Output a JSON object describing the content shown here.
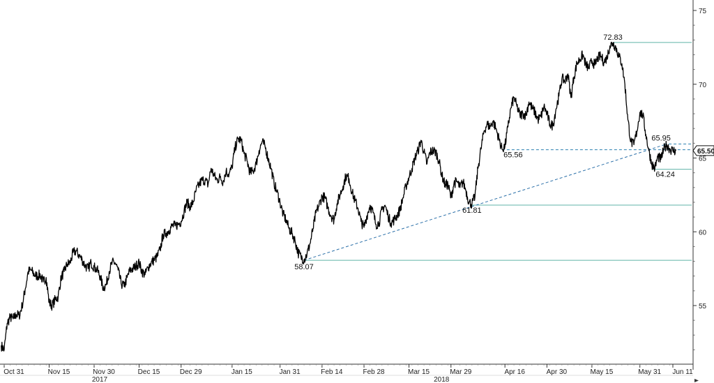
{
  "chart_data": {
    "type": "line",
    "title": "",
    "xlabel": "",
    "ylabel": "",
    "ylim": [
      51.5,
      75.5
    ],
    "y_ticks": [
      55,
      60,
      65,
      70,
      75
    ],
    "y_axis_position": "right",
    "grid": false,
    "legend": "none",
    "x_ticks": [
      {
        "label": "Oct 31",
        "day": 0
      },
      {
        "label": "Nov 15",
        "day": 15
      },
      {
        "label": "Nov 30",
        "day": 30
      },
      {
        "label": "Dec 15",
        "day": 45
      },
      {
        "label": "Dec 29",
        "day": 59
      },
      {
        "label": "Jan 15",
        "day": 76
      },
      {
        "label": "Jan 31",
        "day": 92
      },
      {
        "label": "Feb 14",
        "day": 106
      },
      {
        "label": "Feb 28",
        "day": 120
      },
      {
        "label": "Mar 15",
        "day": 135
      },
      {
        "label": "Mar 29",
        "day": 149
      },
      {
        "label": "Apr 16",
        "day": 167
      },
      {
        "label": "Apr 30",
        "day": 181
      },
      {
        "label": "May 15",
        "day": 196
      },
      {
        "label": "May 31",
        "day": 212
      },
      {
        "label": "Jun 11",
        "day": 223
      }
    ],
    "year_labels": [
      {
        "label": "2017",
        "day": 30
      },
      {
        "label": "2018",
        "day": 144
      }
    ],
    "series": [
      {
        "color": "#000000",
        "points": [
          [
            -1,
            52.3
          ],
          [
            0,
            52.0
          ],
          [
            1,
            53.8
          ],
          [
            2,
            54.2
          ],
          [
            3,
            54.1
          ],
          [
            4,
            54.4
          ],
          [
            5,
            54.3
          ],
          [
            6,
            55.0
          ],
          [
            7,
            56.1
          ],
          [
            8,
            57.3
          ],
          [
            9,
            57.4
          ],
          [
            10,
            57.1
          ],
          [
            11,
            57.0
          ],
          [
            12,
            57.1
          ],
          [
            13,
            56.6
          ],
          [
            14,
            56.9
          ],
          [
            15,
            55.2
          ],
          [
            16,
            55.0
          ],
          [
            17,
            55.4
          ],
          [
            18,
            55.6
          ],
          [
            19,
            56.9
          ],
          [
            20,
            57.3
          ],
          [
            21,
            57.8
          ],
          [
            22,
            57.9
          ],
          [
            23,
            58.6
          ],
          [
            24,
            58.7
          ],
          [
            25,
            58.4
          ],
          [
            26,
            58.1
          ],
          [
            27,
            57.7
          ],
          [
            28,
            57.5
          ],
          [
            29,
            57.9
          ],
          [
            30,
            57.6
          ],
          [
            31,
            57.4
          ],
          [
            32,
            57.0
          ],
          [
            33,
            56.2
          ],
          [
            34,
            56.4
          ],
          [
            35,
            57.3
          ],
          [
            36,
            57.9
          ],
          [
            37,
            57.9
          ],
          [
            38,
            57.4
          ],
          [
            39,
            56.5
          ],
          [
            40,
            56.3
          ],
          [
            41,
            56.9
          ],
          [
            42,
            57.4
          ],
          [
            43,
            57.5
          ],
          [
            44,
            57.7
          ],
          [
            45,
            57.9
          ],
          [
            46,
            57.3
          ],
          [
            47,
            57.1
          ],
          [
            48,
            57.6
          ],
          [
            49,
            57.9
          ],
          [
            50,
            58.1
          ],
          [
            51,
            58.3
          ],
          [
            52,
            58.8
          ],
          [
            53,
            59.8
          ],
          [
            54,
            59.9
          ],
          [
            55,
            60.1
          ],
          [
            56,
            60.4
          ],
          [
            57,
            60.4
          ],
          [
            58,
            60.5
          ],
          [
            59,
            60.7
          ],
          [
            60,
            61.4
          ],
          [
            61,
            62.0
          ],
          [
            62,
            61.7
          ],
          [
            63,
            62.0
          ],
          [
            64,
            62.8
          ],
          [
            65,
            63.2
          ],
          [
            66,
            63.5
          ],
          [
            67,
            63.5
          ],
          [
            68,
            63.2
          ],
          [
            69,
            64.3
          ],
          [
            70,
            63.8
          ],
          [
            71,
            63.5
          ],
          [
            72,
            63.7
          ],
          [
            73,
            63.4
          ],
          [
            74,
            64.1
          ],
          [
            75,
            63.9
          ],
          [
            76,
            64.4
          ],
          [
            77,
            65.7
          ],
          [
            78,
            66.3
          ],
          [
            79,
            66.2
          ],
          [
            80,
            65.3
          ],
          [
            81,
            64.8
          ],
          [
            82,
            64.0
          ],
          [
            83,
            64.1
          ],
          [
            84,
            64.6
          ],
          [
            85,
            65.5
          ],
          [
            86,
            66.1
          ],
          [
            87,
            65.8
          ],
          [
            88,
            65.0
          ],
          [
            89,
            64.3
          ],
          [
            90,
            63.3
          ],
          [
            91,
            62.7
          ],
          [
            92,
            62.0
          ],
          [
            93,
            61.2
          ],
          [
            94,
            60.8
          ],
          [
            95,
            60.2
          ],
          [
            96,
            59.9
          ],
          [
            97,
            59.4
          ],
          [
            98,
            58.6
          ],
          [
            99,
            58.3
          ],
          [
            100,
            58.1
          ],
          [
            101,
            58.5
          ],
          [
            102,
            59.2
          ],
          [
            103,
            60.2
          ],
          [
            104,
            61.3
          ],
          [
            105,
            61.8
          ],
          [
            106,
            62.4
          ],
          [
            107,
            62.3
          ],
          [
            108,
            61.6
          ],
          [
            109,
            61.1
          ],
          [
            110,
            60.8
          ],
          [
            111,
            61.9
          ],
          [
            112,
            62.5
          ],
          [
            113,
            63.1
          ],
          [
            114,
            63.8
          ],
          [
            115,
            63.6
          ],
          [
            116,
            62.7
          ],
          [
            117,
            62.1
          ],
          [
            118,
            61.6
          ],
          [
            119,
            60.7
          ],
          [
            120,
            60.3
          ],
          [
            121,
            61.1
          ],
          [
            122,
            61.8
          ],
          [
            123,
            61.3
          ],
          [
            124,
            60.5
          ],
          [
            125,
            60.6
          ],
          [
            126,
            61.5
          ],
          [
            127,
            61.8
          ],
          [
            128,
            61.1
          ],
          [
            129,
            60.6
          ],
          [
            130,
            60.8
          ],
          [
            131,
            61.1
          ],
          [
            132,
            61.5
          ],
          [
            133,
            62.3
          ],
          [
            134,
            63.1
          ],
          [
            135,
            63.7
          ],
          [
            136,
            64.3
          ],
          [
            137,
            65.0
          ],
          [
            138,
            65.5
          ],
          [
            139,
            66.2
          ],
          [
            140,
            65.4
          ],
          [
            141,
            64.6
          ],
          [
            142,
            65.4
          ],
          [
            143,
            65.5
          ],
          [
            144,
            65.4
          ],
          [
            145,
            64.8
          ],
          [
            146,
            63.8
          ],
          [
            147,
            63.2
          ],
          [
            148,
            63.2
          ],
          [
            149,
            62.3
          ],
          [
            150,
            63.3
          ],
          [
            151,
            63.4
          ],
          [
            152,
            63.0
          ],
          [
            153,
            63.4
          ],
          [
            154,
            62.8
          ],
          [
            155,
            62.0
          ],
          [
            156,
            61.9
          ],
          [
            157,
            62.4
          ],
          [
            158,
            64.3
          ],
          [
            159,
            65.6
          ],
          [
            160,
            66.8
          ],
          [
            161,
            67.3
          ],
          [
            162,
            67.1
          ],
          [
            163,
            67.5
          ],
          [
            164,
            67.0
          ],
          [
            165,
            66.3
          ],
          [
            166,
            65.6
          ],
          [
            167,
            65.8
          ],
          [
            168,
            67.1
          ],
          [
            169,
            68.4
          ],
          [
            170,
            69.1
          ],
          [
            171,
            68.5
          ],
          [
            172,
            67.9
          ],
          [
            173,
            68.0
          ],
          [
            174,
            67.9
          ],
          [
            175,
            68.8
          ],
          [
            176,
            68.4
          ],
          [
            177,
            68.1
          ],
          [
            178,
            67.6
          ],
          [
            179,
            67.8
          ],
          [
            180,
            68.5
          ],
          [
            181,
            68.0
          ],
          [
            182,
            67.3
          ],
          [
            183,
            67.2
          ],
          [
            184,
            68.3
          ],
          [
            185,
            69.2
          ],
          [
            186,
            70.4
          ],
          [
            187,
            70.2
          ],
          [
            188,
            70.7
          ],
          [
            189,
            69.1
          ],
          [
            190,
            70.5
          ],
          [
            191,
            71.4
          ],
          [
            192,
            71.7
          ],
          [
            193,
            72.0
          ],
          [
            194,
            71.3
          ],
          [
            195,
            71.1
          ],
          [
            196,
            71.6
          ],
          [
            197,
            71.3
          ],
          [
            198,
            71.8
          ],
          [
            199,
            71.9
          ],
          [
            200,
            71.5
          ],
          [
            201,
            71.8
          ],
          [
            202,
            72.6
          ],
          [
            203,
            72.8
          ],
          [
            204,
            72.5
          ],
          [
            205,
            71.9
          ],
          [
            206,
            71.4
          ],
          [
            207,
            70.0
          ],
          [
            208,
            67.6
          ],
          [
            209,
            66.1
          ],
          [
            210,
            65.9
          ],
          [
            211,
            66.8
          ],
          [
            212,
            68.1
          ],
          [
            213,
            67.9
          ],
          [
            214,
            66.6
          ],
          [
            215,
            65.5
          ],
          [
            216,
            64.6
          ],
          [
            217,
            64.3
          ],
          [
            218,
            65.1
          ],
          [
            219,
            64.9
          ],
          [
            220,
            65.6
          ],
          [
            221,
            65.9
          ],
          [
            222,
            65.6
          ],
          [
            223,
            65.5
          ],
          [
            224,
            65.5
          ]
        ]
      }
    ],
    "horizontal_levels": [
      {
        "value": 72.83,
        "label": "72.83",
        "from_day": 203,
        "style": "solid"
      },
      {
        "value": 65.95,
        "label": "65.95",
        "from_day": 220,
        "style": "dashed"
      },
      {
        "value": 65.56,
        "label": "65.56",
        "from_day": 166,
        "style": "dashed"
      },
      {
        "value": 64.24,
        "label": "64.24",
        "from_day": 216,
        "style": "solid"
      },
      {
        "value": 61.81,
        "label": "61.81",
        "from_day": 156,
        "style": "solid"
      },
      {
        "value": 58.07,
        "label": "58.07",
        "from_day": 100,
        "style": "solid"
      }
    ],
    "trendline": {
      "from": [
        100,
        58.07
      ],
      "to": [
        221,
        65.95
      ],
      "style": "dashed"
    },
    "last_price": {
      "value": 65.5,
      "label": "65.50"
    }
  }
}
